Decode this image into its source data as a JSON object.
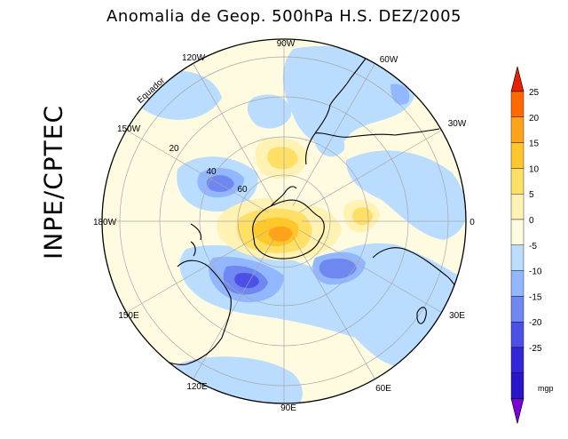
{
  "title": "Anomalia de Geop. 500hPa H.S. DEZ/2005",
  "brand": "INPE/CPTEC",
  "map": {
    "projection": "polar stereographic (south pole)",
    "equator_label": "Equador",
    "longitude_labels": [
      {
        "id": "90w",
        "text": "90W"
      },
      {
        "id": "60w",
        "text": "60W"
      },
      {
        "id": "30w",
        "text": "30W"
      },
      {
        "id": "0",
        "text": "0"
      },
      {
        "id": "30e",
        "text": "30E"
      },
      {
        "id": "60e",
        "text": "60E"
      },
      {
        "id": "90e",
        "text": "90E"
      },
      {
        "id": "120e",
        "text": "120E"
      },
      {
        "id": "150e",
        "text": "150E"
      },
      {
        "id": "180w",
        "text": "180W"
      },
      {
        "id": "150w",
        "text": "150W"
      },
      {
        "id": "120w",
        "text": "120W"
      }
    ],
    "latitude_labels": [
      "20",
      "40",
      "60"
    ]
  },
  "colorbar": {
    "unit": "mgp",
    "ticks": [
      "25",
      "20",
      "15",
      "10",
      "5",
      "0",
      "-5",
      "-10",
      "-15",
      "-20",
      "-25"
    ],
    "colors": [
      "#ff6a00",
      "#ffa31a",
      "#ffc82a",
      "#ffe066",
      "#fff2b3",
      "#fffbe0",
      "#b9dcff",
      "#93b7ff",
      "#6f87f0",
      "#4c50e6",
      "#3227d8",
      "#2a16c9"
    ],
    "top_cap_color": "#e82000",
    "bottom_cap_color": "#7a00d6"
  },
  "legend_colors": {
    "neg_weak": "#b9dcff",
    "neg_mod": "#93b7ff",
    "neg_strong": "#6f87f0",
    "neg_vstrong": "#4c50e6",
    "pos_weak": "#fff2b3",
    "pos_mod": "#ffe066",
    "pos_strong": "#ffc82a",
    "pos_vstrong": "#ffa31a"
  }
}
